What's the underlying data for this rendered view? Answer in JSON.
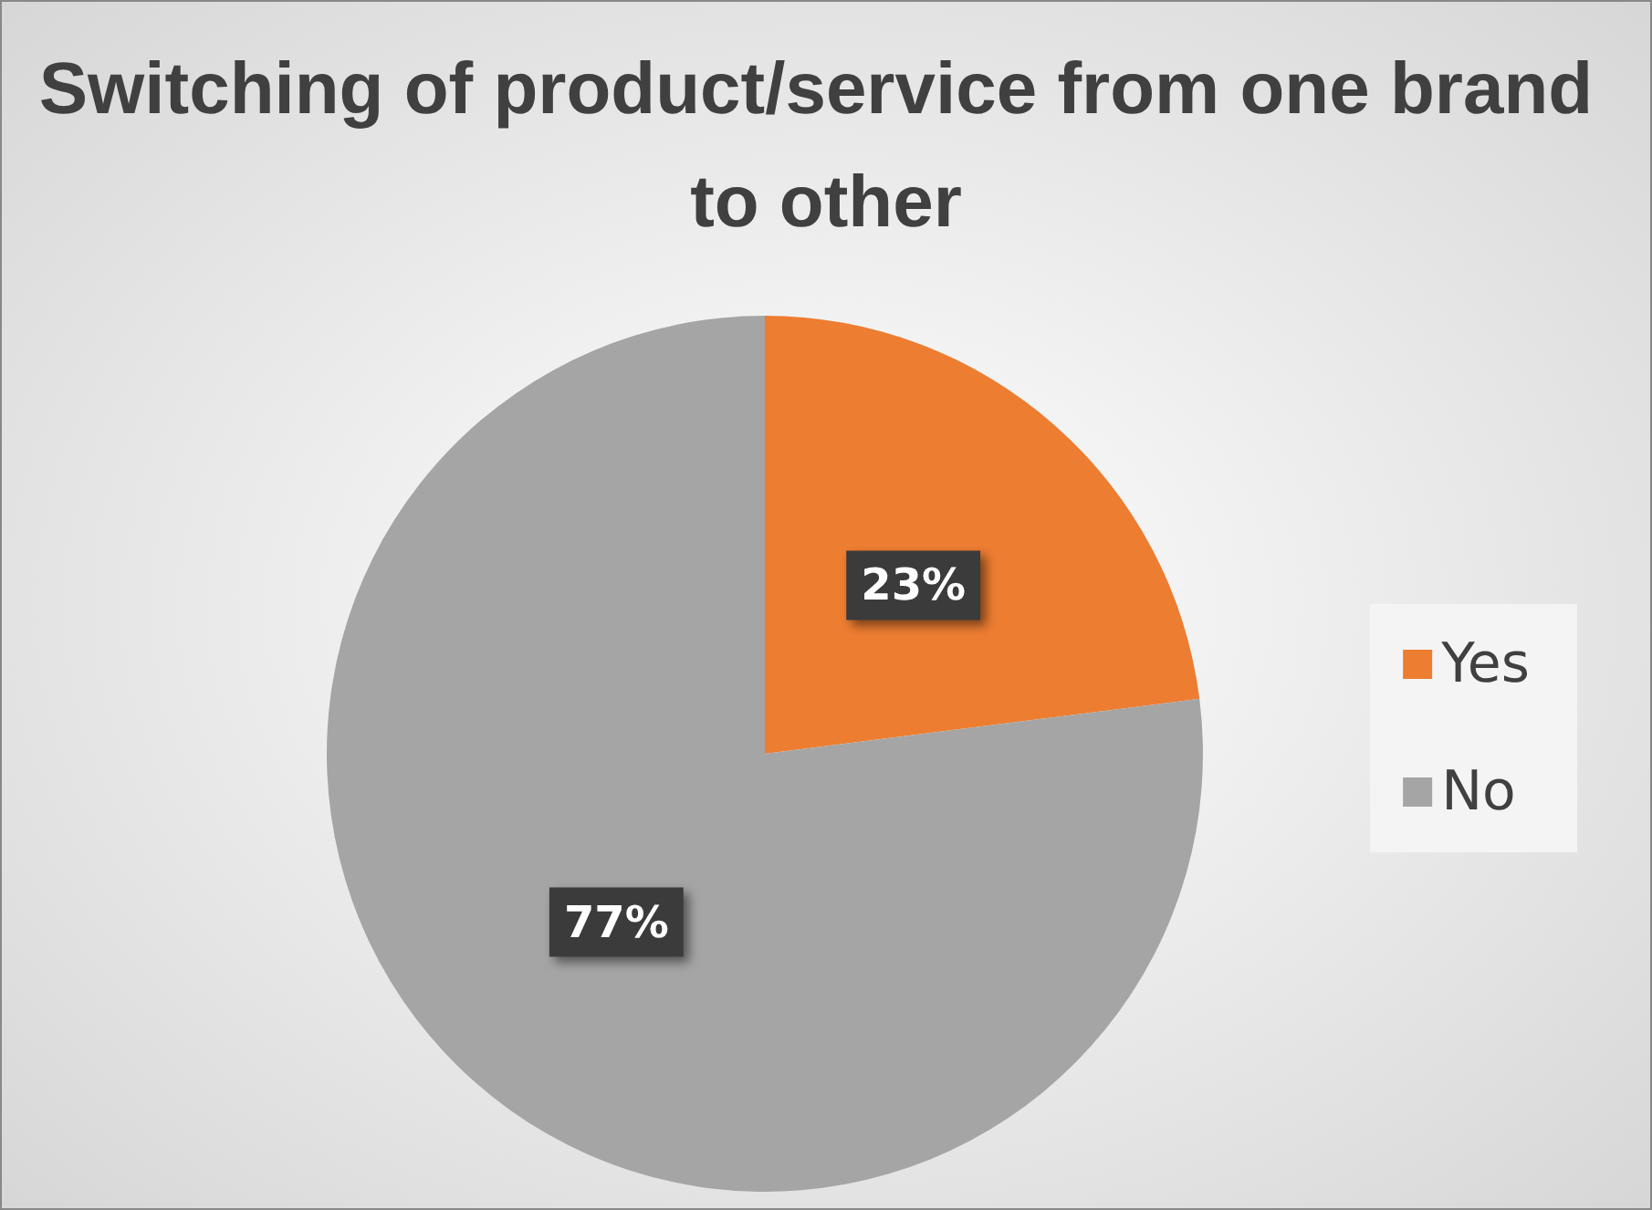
{
  "chart_data": {
    "type": "pie",
    "title": "Switching of product/service from one brand to other",
    "categories": [
      "Yes",
      "No"
    ],
    "values": [
      23,
      77
    ],
    "colors": [
      "#ed7d31",
      "#a5a5a5"
    ],
    "value_labels": [
      "23%",
      "77%"
    ],
    "legend": "right"
  }
}
